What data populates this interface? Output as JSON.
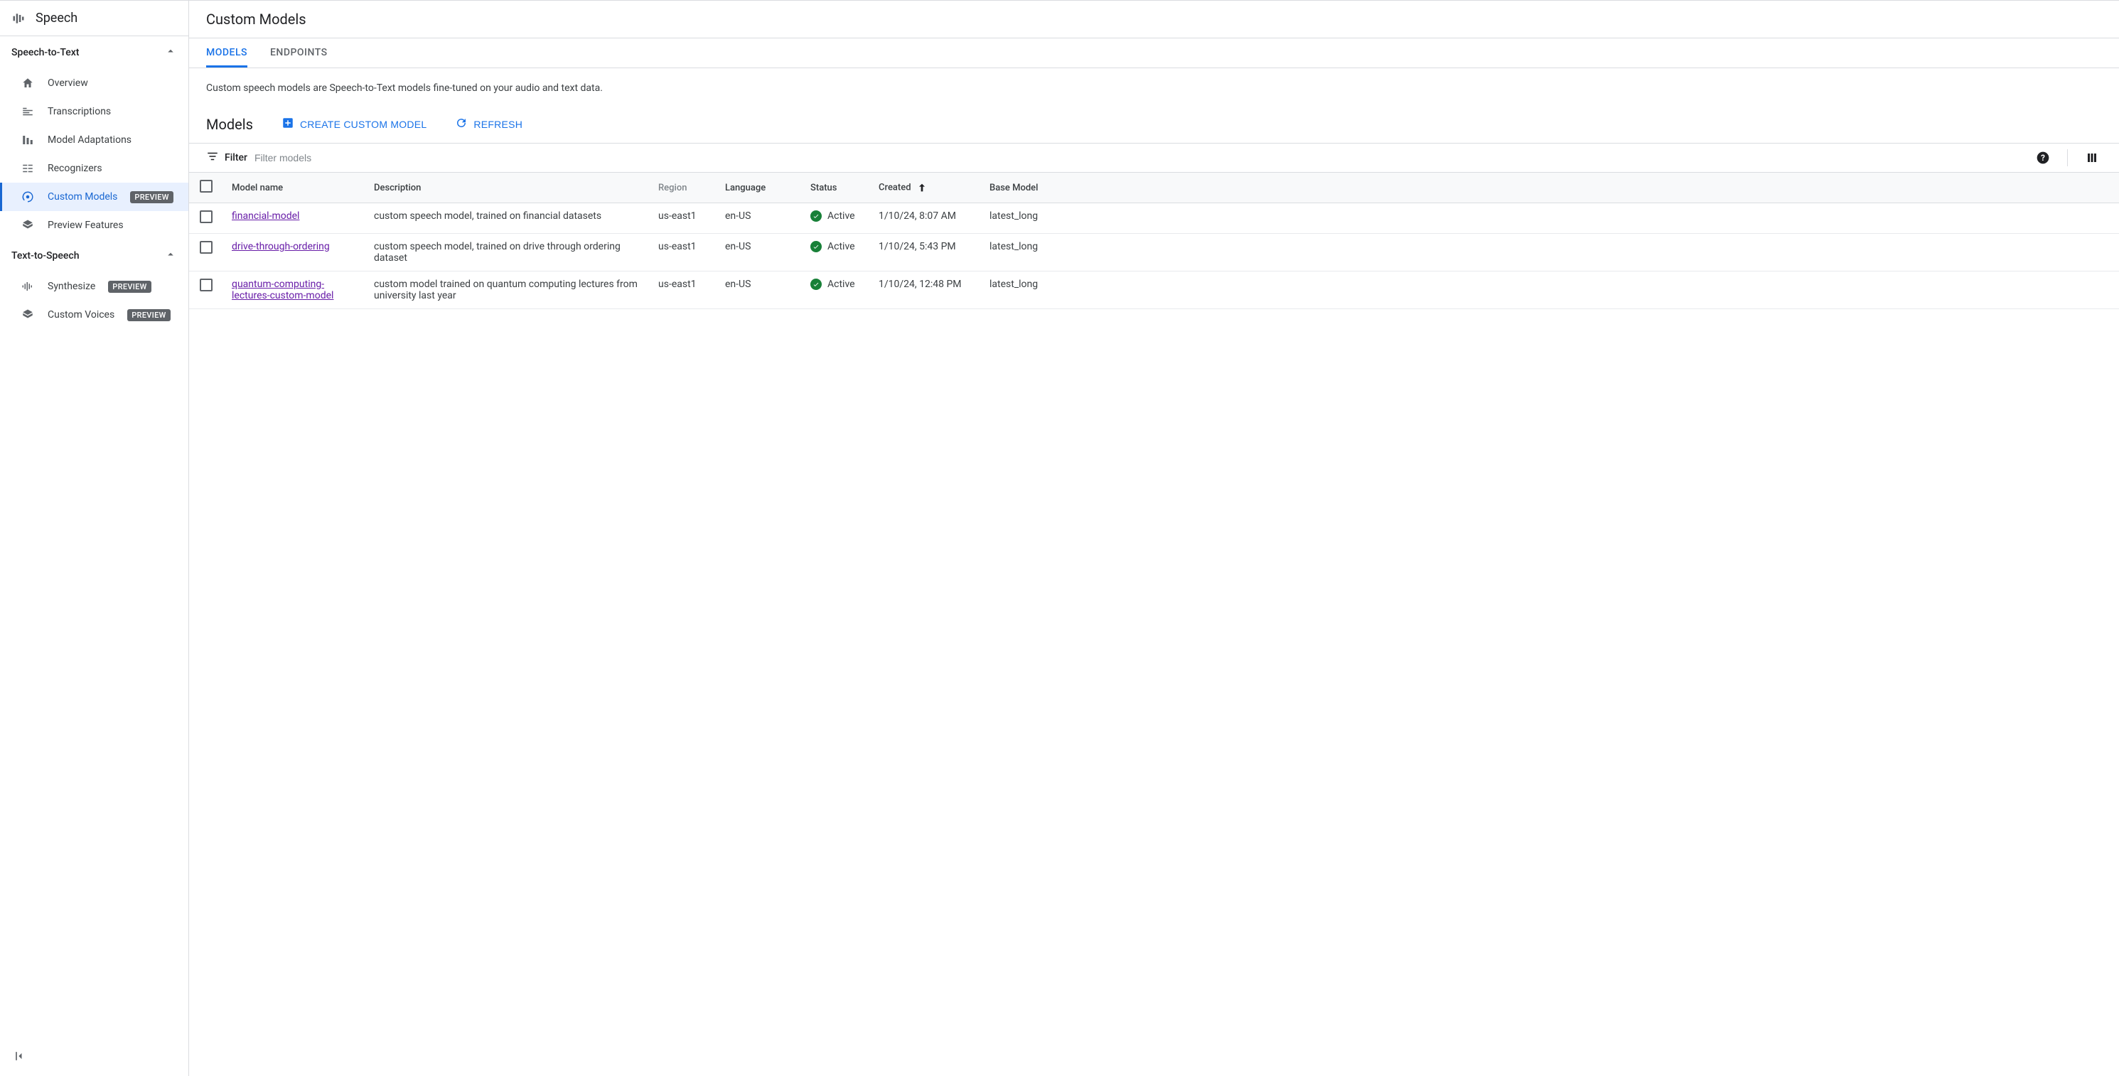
{
  "product": {
    "name": "Speech"
  },
  "sidebar": {
    "section1": {
      "title": "Speech-to-Text"
    },
    "section2": {
      "title": "Text-to-Speech"
    },
    "items": {
      "overview": {
        "label": "Overview"
      },
      "transcriptions": {
        "label": "Transcriptions"
      },
      "model_adaptations": {
        "label": "Model Adaptations"
      },
      "recognizers": {
        "label": "Recognizers"
      },
      "custom_models": {
        "label": "Custom Models",
        "badge": "PREVIEW"
      },
      "preview_features": {
        "label": "Preview Features"
      },
      "synthesize": {
        "label": "Synthesize",
        "badge": "PREVIEW"
      },
      "custom_voices": {
        "label": "Custom Voices",
        "badge": "PREVIEW"
      }
    }
  },
  "page": {
    "title": "Custom Models",
    "tabs": {
      "models": "MODELS",
      "endpoints": "ENDPOINTS"
    },
    "description": "Custom speech models are Speech-to-Text models fine-tuned on your audio and text data.",
    "section_title": "Models",
    "actions": {
      "create": "CREATE CUSTOM MODEL",
      "refresh": "REFRESH"
    },
    "filter": {
      "label": "Filter",
      "placeholder": "Filter models"
    }
  },
  "table": {
    "columns": {
      "model_name": "Model name",
      "description": "Description",
      "region": "Region",
      "language": "Language",
      "status": "Status",
      "created": "Created",
      "base_model": "Base Model"
    },
    "rows": [
      {
        "name": "financial-model",
        "description": "custom speech model, trained on financial datasets",
        "region": "us-east1",
        "language": "en-US",
        "status": "Active",
        "created": "1/10/24, 8:07 AM",
        "base_model": "latest_long"
      },
      {
        "name": "drive-through-ordering",
        "description": "custom speech model, trained on drive through ordering dataset",
        "region": "us-east1",
        "language": "en-US",
        "status": "Active",
        "created": "1/10/24, 5:43 PM",
        "base_model": "latest_long"
      },
      {
        "name": "quantum-computing-lectures-custom-model",
        "description": "custom model trained on quantum computing lectures from university last year",
        "region": "us-east1",
        "language": "en-US",
        "status": "Active",
        "created": "1/10/24, 12:48 PM",
        "base_model": "latest_long"
      }
    ]
  },
  "colors": {
    "primary": "#1a73e8",
    "link_visited": "#681da8",
    "status_green": "#188038",
    "divider": "#dadce0",
    "text_primary": "#202124",
    "text_secondary": "#5f6368",
    "active_bg": "#e8f0fe"
  }
}
